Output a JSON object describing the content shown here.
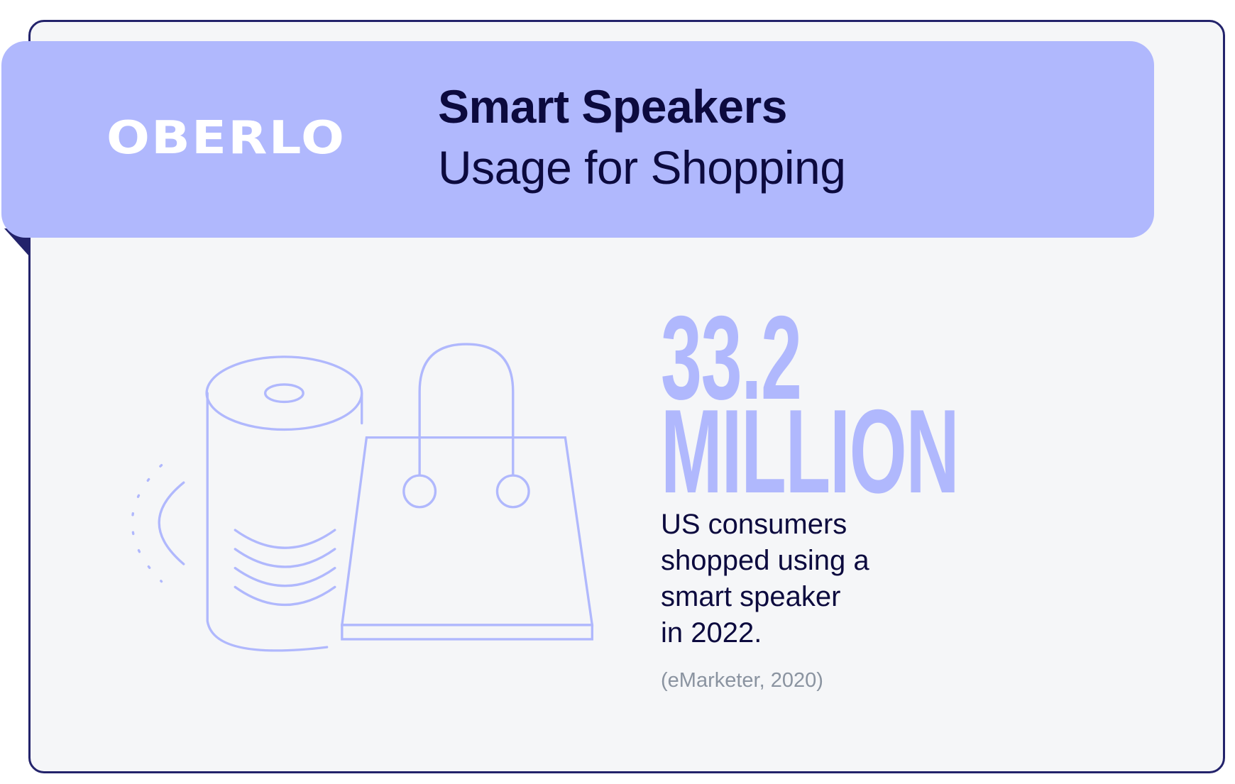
{
  "brand": {
    "logo_text": "OBERLO",
    "band_color": "#b0b8fd",
    "border_color": "#23236b"
  },
  "header": {
    "title": "Smart Speakers",
    "subtitle": "Usage for Shopping"
  },
  "stat": {
    "value": "33.2",
    "unit": "MILLION",
    "description_lines": [
      "US consumers",
      "shopped using a",
      "smart speaker",
      "in 2022."
    ],
    "source": "(eMarketer, 2020)"
  },
  "illustration": {
    "icons": [
      "smart-speaker-icon",
      "shopping-bag-icon",
      "sound-wave-icon"
    ],
    "stroke_color": "#b0b8fd"
  }
}
